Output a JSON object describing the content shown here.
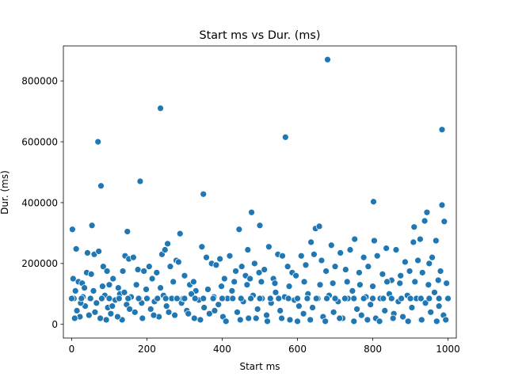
{
  "chart_data": {
    "type": "scatter",
    "title": "Start ms vs Dur. (ms)",
    "xlabel": "Start ms",
    "ylabel": "Dur. (ms)",
    "xlim": [
      -22,
      1022
    ],
    "ylim": [
      -45000,
      915000
    ],
    "xticks": [
      0,
      200,
      400,
      600,
      800,
      1000
    ],
    "yticks": [
      0,
      200000,
      400000,
      600000,
      800000
    ],
    "grid": false,
    "marker_color": "#1f77b4",
    "points": [
      [
        2,
        312000
      ],
      [
        12,
        248000
      ],
      [
        42,
        235000
      ],
      [
        54,
        325000
      ],
      [
        70,
        600000
      ],
      [
        78,
        455000
      ],
      [
        148,
        305000
      ],
      [
        182,
        470000
      ],
      [
        236,
        710000
      ],
      [
        255,
        265000
      ],
      [
        288,
        298000
      ],
      [
        350,
        428000
      ],
      [
        445,
        312000
      ],
      [
        468,
        245000
      ],
      [
        478,
        368000
      ],
      [
        500,
        325000
      ],
      [
        568,
        615000
      ],
      [
        648,
        315000
      ],
      [
        658,
        322000
      ],
      [
        680,
        870000
      ],
      [
        690,
        260000
      ],
      [
        802,
        403000
      ],
      [
        804,
        275000
      ],
      [
        910,
        320000
      ],
      [
        938,
        340000
      ],
      [
        944,
        368000
      ],
      [
        968,
        275000
      ],
      [
        984,
        640000
      ],
      [
        984,
        392000
      ],
      [
        990,
        338000
      ],
      [
        4,
        150000
      ],
      [
        10,
        110000
      ],
      [
        18,
        140000
      ],
      [
        28,
        135000
      ],
      [
        40,
        170000
      ],
      [
        52,
        165000
      ],
      [
        60,
        230000
      ],
      [
        72,
        240000
      ],
      [
        84,
        190000
      ],
      [
        94,
        175000
      ],
      [
        100,
        130000
      ],
      [
        110,
        150000
      ],
      [
        124,
        120000
      ],
      [
        136,
        175000
      ],
      [
        142,
        225000
      ],
      [
        152,
        215000
      ],
      [
        164,
        220000
      ],
      [
        176,
        180000
      ],
      [
        192,
        175000
      ],
      [
        206,
        190000
      ],
      [
        214,
        150000
      ],
      [
        226,
        170000
      ],
      [
        240,
        230000
      ],
      [
        248,
        245000
      ],
      [
        262,
        190000
      ],
      [
        278,
        210000
      ],
      [
        284,
        205000
      ],
      [
        300,
        160000
      ],
      [
        314,
        130000
      ],
      [
        330,
        110000
      ],
      [
        346,
        255000
      ],
      [
        358,
        220000
      ],
      [
        372,
        200000
      ],
      [
        384,
        195000
      ],
      [
        394,
        215000
      ],
      [
        406,
        150000
      ],
      [
        420,
        225000
      ],
      [
        436,
        175000
      ],
      [
        452,
        190000
      ],
      [
        462,
        160000
      ],
      [
        474,
        150000
      ],
      [
        486,
        200000
      ],
      [
        498,
        170000
      ],
      [
        512,
        180000
      ],
      [
        524,
        255000
      ],
      [
        536,
        150000
      ],
      [
        548,
        230000
      ],
      [
        560,
        225000
      ],
      [
        574,
        190000
      ],
      [
        586,
        170000
      ],
      [
        596,
        160000
      ],
      [
        610,
        225000
      ],
      [
        622,
        195000
      ],
      [
        636,
        270000
      ],
      [
        644,
        230000
      ],
      [
        664,
        210000
      ],
      [
        676,
        175000
      ],
      [
        700,
        190000
      ],
      [
        714,
        235000
      ],
      [
        728,
        180000
      ],
      [
        740,
        245000
      ],
      [
        752,
        280000
      ],
      [
        764,
        170000
      ],
      [
        776,
        220000
      ],
      [
        788,
        190000
      ],
      [
        812,
        225000
      ],
      [
        826,
        165000
      ],
      [
        836,
        250000
      ],
      [
        850,
        145000
      ],
      [
        862,
        245000
      ],
      [
        874,
        160000
      ],
      [
        886,
        205000
      ],
      [
        898,
        175000
      ],
      [
        908,
        270000
      ],
      [
        920,
        210000
      ],
      [
        926,
        280000
      ],
      [
        932,
        170000
      ],
      [
        950,
        200000
      ],
      [
        958,
        220000
      ],
      [
        974,
        145000
      ],
      [
        980,
        175000
      ],
      [
        996,
        135000
      ],
      [
        6,
        85000
      ],
      [
        14,
        45000
      ],
      [
        22,
        25000
      ],
      [
        30,
        90000
      ],
      [
        36,
        60000
      ],
      [
        46,
        30000
      ],
      [
        58,
        110000
      ],
      [
        66,
        70000
      ],
      [
        76,
        20000
      ],
      [
        88,
        95000
      ],
      [
        96,
        55000
      ],
      [
        104,
        35000
      ],
      [
        116,
        80000
      ],
      [
        128,
        100000
      ],
      [
        134,
        15000
      ],
      [
        146,
        65000
      ],
      [
        158,
        90000
      ],
      [
        168,
        40000
      ],
      [
        180,
        85000
      ],
      [
        188,
        20000
      ],
      [
        198,
        115000
      ],
      [
        210,
        50000
      ],
      [
        220,
        75000
      ],
      [
        232,
        25000
      ],
      [
        244,
        95000
      ],
      [
        252,
        60000
      ],
      [
        266,
        85000
      ],
      [
        274,
        30000
      ],
      [
        292,
        70000
      ],
      [
        306,
        45000
      ],
      [
        318,
        100000
      ],
      [
        326,
        20000
      ],
      [
        338,
        80000
      ],
      [
        352,
        55000
      ],
      [
        366,
        35000
      ],
      [
        378,
        90000
      ],
      [
        390,
        65000
      ],
      [
        402,
        25000
      ],
      [
        414,
        85000
      ],
      [
        426,
        110000
      ],
      [
        440,
        40000
      ],
      [
        456,
        75000
      ],
      [
        470,
        20000
      ],
      [
        482,
        95000
      ],
      [
        494,
        50000
      ],
      [
        506,
        85000
      ],
      [
        518,
        30000
      ],
      [
        530,
        70000
      ],
      [
        542,
        105000
      ],
      [
        554,
        45000
      ],
      [
        566,
        90000
      ],
      [
        580,
        15000
      ],
      [
        592,
        80000
      ],
      [
        604,
        60000
      ],
      [
        616,
        35000
      ],
      [
        628,
        100000
      ],
      [
        640,
        55000
      ],
      [
        654,
        85000
      ],
      [
        668,
        25000
      ],
      [
        684,
        95000
      ],
      [
        696,
        40000
      ],
      [
        708,
        75000
      ],
      [
        720,
        20000
      ],
      [
        734,
        85000
      ],
      [
        746,
        110000
      ],
      [
        758,
        50000
      ],
      [
        770,
        30000
      ],
      [
        782,
        90000
      ],
      [
        794,
        65000
      ],
      [
        808,
        20000
      ],
      [
        820,
        85000
      ],
      [
        832,
        45000
      ],
      [
        844,
        100000
      ],
      [
        856,
        35000
      ],
      [
        868,
        75000
      ],
      [
        880,
        25000
      ],
      [
        892,
        95000
      ],
      [
        904,
        55000
      ],
      [
        916,
        85000
      ],
      [
        928,
        15000
      ],
      [
        940,
        70000
      ],
      [
        954,
        40000
      ],
      [
        964,
        105000
      ],
      [
        976,
        60000
      ],
      [
        988,
        30000
      ],
      [
        998,
        85000
      ],
      [
        8,
        20000
      ],
      [
        24,
        70000
      ],
      [
        34,
        120000
      ],
      [
        48,
        85000
      ],
      [
        62,
        40000
      ],
      [
        82,
        125000
      ],
      [
        92,
        15000
      ],
      [
        108,
        60000
      ],
      [
        122,
        25000
      ],
      [
        140,
        105000
      ],
      [
        154,
        50000
      ],
      [
        172,
        130000
      ],
      [
        186,
        70000
      ],
      [
        202,
        85000
      ],
      [
        218,
        30000
      ],
      [
        236,
        120000
      ],
      [
        258,
        40000
      ],
      [
        270,
        140000
      ],
      [
        296,
        85000
      ],
      [
        310,
        35000
      ],
      [
        324,
        140000
      ],
      [
        342,
        15000
      ],
      [
        362,
        115000
      ],
      [
        380,
        45000
      ],
      [
        398,
        125000
      ],
      [
        410,
        10000
      ],
      [
        432,
        140000
      ],
      [
        448,
        15000
      ],
      [
        466,
        130000
      ],
      [
        490,
        20000
      ],
      [
        504,
        140000
      ],
      [
        520,
        10000
      ],
      [
        540,
        135000
      ],
      [
        558,
        20000
      ],
      [
        578,
        125000
      ],
      [
        600,
        10000
      ],
      [
        618,
        140000
      ],
      [
        634,
        15000
      ],
      [
        660,
        130000
      ],
      [
        674,
        10000
      ],
      [
        694,
        135000
      ],
      [
        712,
        20000
      ],
      [
        732,
        140000
      ],
      [
        750,
        10000
      ],
      [
        766,
        130000
      ],
      [
        786,
        15000
      ],
      [
        800,
        125000
      ],
      [
        818,
        10000
      ],
      [
        838,
        140000
      ],
      [
        854,
        20000
      ],
      [
        872,
        135000
      ],
      [
        894,
        10000
      ],
      [
        912,
        140000
      ],
      [
        930,
        15000
      ],
      [
        948,
        130000
      ],
      [
        970,
        10000
      ],
      [
        994,
        15000
      ],
      [
        0,
        85000
      ],
      [
        50,
        85000
      ],
      [
        100,
        85000
      ],
      [
        150,
        85000
      ],
      [
        200,
        85000
      ],
      [
        250,
        85000
      ],
      [
        300,
        85000
      ],
      [
        350,
        85000
      ],
      [
        400,
        85000
      ],
      [
        450,
        85000
      ],
      [
        500,
        85000
      ],
      [
        550,
        85000
      ],
      [
        600,
        85000
      ],
      [
        650,
        85000
      ],
      [
        700,
        85000
      ],
      [
        750,
        85000
      ],
      [
        800,
        85000
      ],
      [
        850,
        85000
      ],
      [
        900,
        85000
      ],
      [
        950,
        85000
      ],
      [
        1000,
        85000
      ],
      [
        26,
        85000
      ],
      [
        80,
        85000
      ],
      [
        126,
        85000
      ],
      [
        178,
        85000
      ],
      [
        228,
        85000
      ],
      [
        280,
        85000
      ],
      [
        328,
        85000
      ],
      [
        376,
        85000
      ],
      [
        428,
        85000
      ],
      [
        476,
        85000
      ],
      [
        528,
        85000
      ],
      [
        576,
        85000
      ],
      [
        626,
        85000
      ],
      [
        678,
        85000
      ],
      [
        726,
        85000
      ],
      [
        776,
        85000
      ],
      [
        828,
        85000
      ],
      [
        876,
        85000
      ],
      [
        928,
        85000
      ],
      [
        976,
        85000
      ]
    ]
  }
}
